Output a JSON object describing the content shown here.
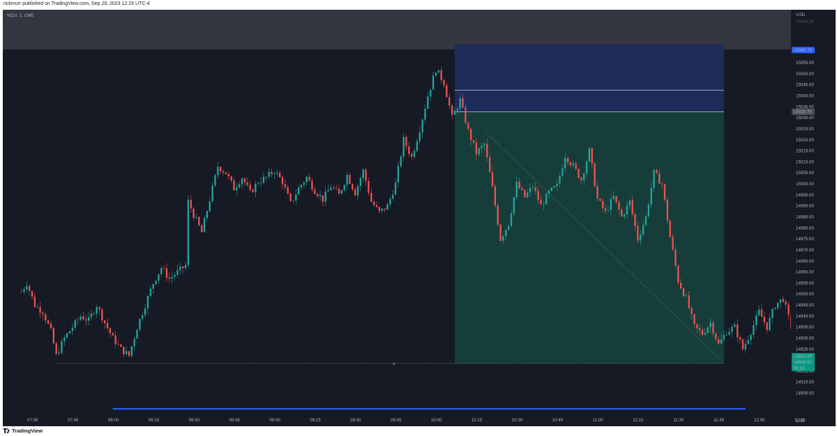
{
  "header": {
    "published": "rickmurr published on TradingView.com, Sep 29, 2023 12:15 UTC-4"
  },
  "symbol": {
    "label": "NQ1!, 1, CME"
  },
  "footer": {
    "brand": "TradingView"
  },
  "colors": {
    "background": "#161a25",
    "up": "#26a69a",
    "down": "#ef5350",
    "target_zone": "#163d3a",
    "stop_zone": "#1c2b5a",
    "crosshair_band": "#363a45",
    "current_price_label": "#089981",
    "stop_label": "#2962ff"
  },
  "chart_data": {
    "type": "candlestick",
    "currency": "USD",
    "ylim": [
      14902,
      15068
    ],
    "y_ticks": [
      14905,
      14910,
      14915,
      14920,
      14925,
      14930,
      14935,
      14940,
      14945,
      14950,
      14955,
      14960,
      14965,
      14970,
      14975,
      14980,
      14985,
      14990,
      14995,
      15000,
      15005,
      15010,
      15015,
      15020,
      15025,
      15030,
      15035,
      15040,
      15045,
      15050,
      15055
    ],
    "x_tick_labels": [
      "07:30",
      "07:45",
      "08:00",
      "08:15",
      "08:30",
      "08:45",
      "09:00",
      "09:15",
      "09:30",
      "09:45",
      "10:00",
      "10:15",
      "10:30",
      "10:45",
      "11:00",
      "11:15",
      "11:30",
      "11:45",
      "12:00",
      "12:15"
    ],
    "time_start": "07:30",
    "time_end": "12:15",
    "close_path": [
      [
        "07:26",
        14951
      ],
      [
        "07:28",
        14955
      ],
      [
        "07:31",
        14945
      ],
      [
        "07:34",
        14942
      ],
      [
        "07:37",
        14933
      ],
      [
        "07:39",
        14922
      ],
      [
        "07:42",
        14930
      ],
      [
        "07:45",
        14935
      ],
      [
        "07:48",
        14940
      ],
      [
        "07:51",
        14938
      ],
      [
        "07:54",
        14945
      ],
      [
        "07:57",
        14937
      ],
      [
        "08:00",
        14930
      ],
      [
        "08:03",
        14925
      ],
      [
        "08:06",
        14922
      ],
      [
        "08:09",
        14935
      ],
      [
        "08:12",
        14945
      ],
      [
        "08:15",
        14955
      ],
      [
        "08:18",
        14962
      ],
      [
        "08:21",
        14957
      ],
      [
        "08:24",
        14960
      ],
      [
        "08:27",
        14963
      ],
      [
        "08:28",
        14992
      ],
      [
        "08:30",
        14986
      ],
      [
        "08:33",
        14978
      ],
      [
        "08:36",
        14993
      ],
      [
        "08:39",
        15008
      ],
      [
        "08:42",
        15005
      ],
      [
        "08:45",
        14998
      ],
      [
        "08:48",
        15003
      ],
      [
        "08:51",
        14996
      ],
      [
        "08:54",
        15001
      ],
      [
        "08:57",
        15003
      ],
      [
        "09:00",
        15006
      ],
      [
        "09:03",
        15001
      ],
      [
        "09:06",
        14991
      ],
      [
        "09:09",
        14998
      ],
      [
        "09:12",
        15003
      ],
      [
        "09:15",
        14997
      ],
      [
        "09:18",
        14993
      ],
      [
        "09:21",
        14999
      ],
      [
        "09:24",
        14995
      ],
      [
        "09:27",
        15004
      ],
      [
        "09:30",
        14996
      ],
      [
        "09:33",
        15006
      ],
      [
        "09:36",
        14992
      ],
      [
        "09:39",
        14987
      ],
      [
        "09:42",
        14990
      ],
      [
        "09:45",
        15000
      ],
      [
        "09:48",
        15020
      ],
      [
        "09:51",
        15012
      ],
      [
        "09:54",
        15025
      ],
      [
        "09:57",
        15040
      ],
      [
        "10:00",
        15052
      ],
      [
        "10:03",
        15046
      ],
      [
        "10:06",
        15030
      ],
      [
        "10:09",
        15038
      ],
      [
        "10:12",
        15024
      ],
      [
        "10:15",
        15014
      ],
      [
        "10:18",
        15018
      ],
      [
        "10:21",
        14998
      ],
      [
        "10:24",
        14975
      ],
      [
        "10:27",
        14982
      ],
      [
        "10:30",
        15000
      ],
      [
        "10:33",
        14994
      ],
      [
        "10:36",
        14999
      ],
      [
        "10:39",
        14990
      ],
      [
        "10:42",
        14996
      ],
      [
        "10:45",
        14999
      ],
      [
        "10:48",
        15013
      ],
      [
        "10:51",
        15008
      ],
      [
        "10:54",
        15002
      ],
      [
        "10:57",
        15015
      ],
      [
        "11:00",
        14993
      ],
      [
        "11:03",
        14987
      ],
      [
        "11:06",
        14994
      ],
      [
        "11:09",
        14985
      ],
      [
        "11:12",
        14992
      ],
      [
        "11:15",
        14975
      ],
      [
        "11:18",
        14985
      ],
      [
        "11:21",
        15005
      ],
      [
        "11:24",
        15000
      ],
      [
        "11:27",
        14976
      ],
      [
        "11:30",
        14956
      ],
      [
        "11:33",
        14948
      ],
      [
        "11:36",
        14935
      ],
      [
        "11:39",
        14932
      ],
      [
        "11:42",
        14937
      ],
      [
        "11:45",
        14927
      ],
      [
        "11:48",
        14933
      ],
      [
        "11:51",
        14935
      ],
      [
        "11:54",
        14925
      ],
      [
        "11:57",
        14933
      ],
      [
        "12:00",
        14942
      ],
      [
        "12:03",
        14935
      ],
      [
        "12:06",
        14945
      ],
      [
        "12:09",
        14948
      ],
      [
        "12:12",
        14935
      ],
      [
        "12:14",
        14918
      ],
      [
        "12:15",
        14920
      ]
    ],
    "last_candle_high_stub": 15057.75,
    "position": {
      "type": "short",
      "entry": 15032.75,
      "stop": 15060.75,
      "target": 14918.5,
      "stop_inner_line": 15042.5,
      "start_time": "10:07",
      "end_time": "11:47"
    },
    "low_marker": {
      "price": 14918.5,
      "from_time": "07:39",
      "to_time": "11:47",
      "label": "x",
      "label_time": "09:44"
    },
    "diagonal": {
      "from_time": "10:18",
      "from_price": 15024,
      "to_time": "11:46",
      "to_price": 14920
    },
    "price_labels": {
      "stop": "15060.75",
      "entry": "15032.75",
      "last_1": "14920.25",
      "last_2": "14920.00",
      "countdown": "00:13"
    },
    "top_axis_cutoff_label": "15060.00",
    "volume_bar": {
      "from_time": "08:00",
      "to_time": "11:55"
    },
    "bottom_right_label": "1.00"
  }
}
